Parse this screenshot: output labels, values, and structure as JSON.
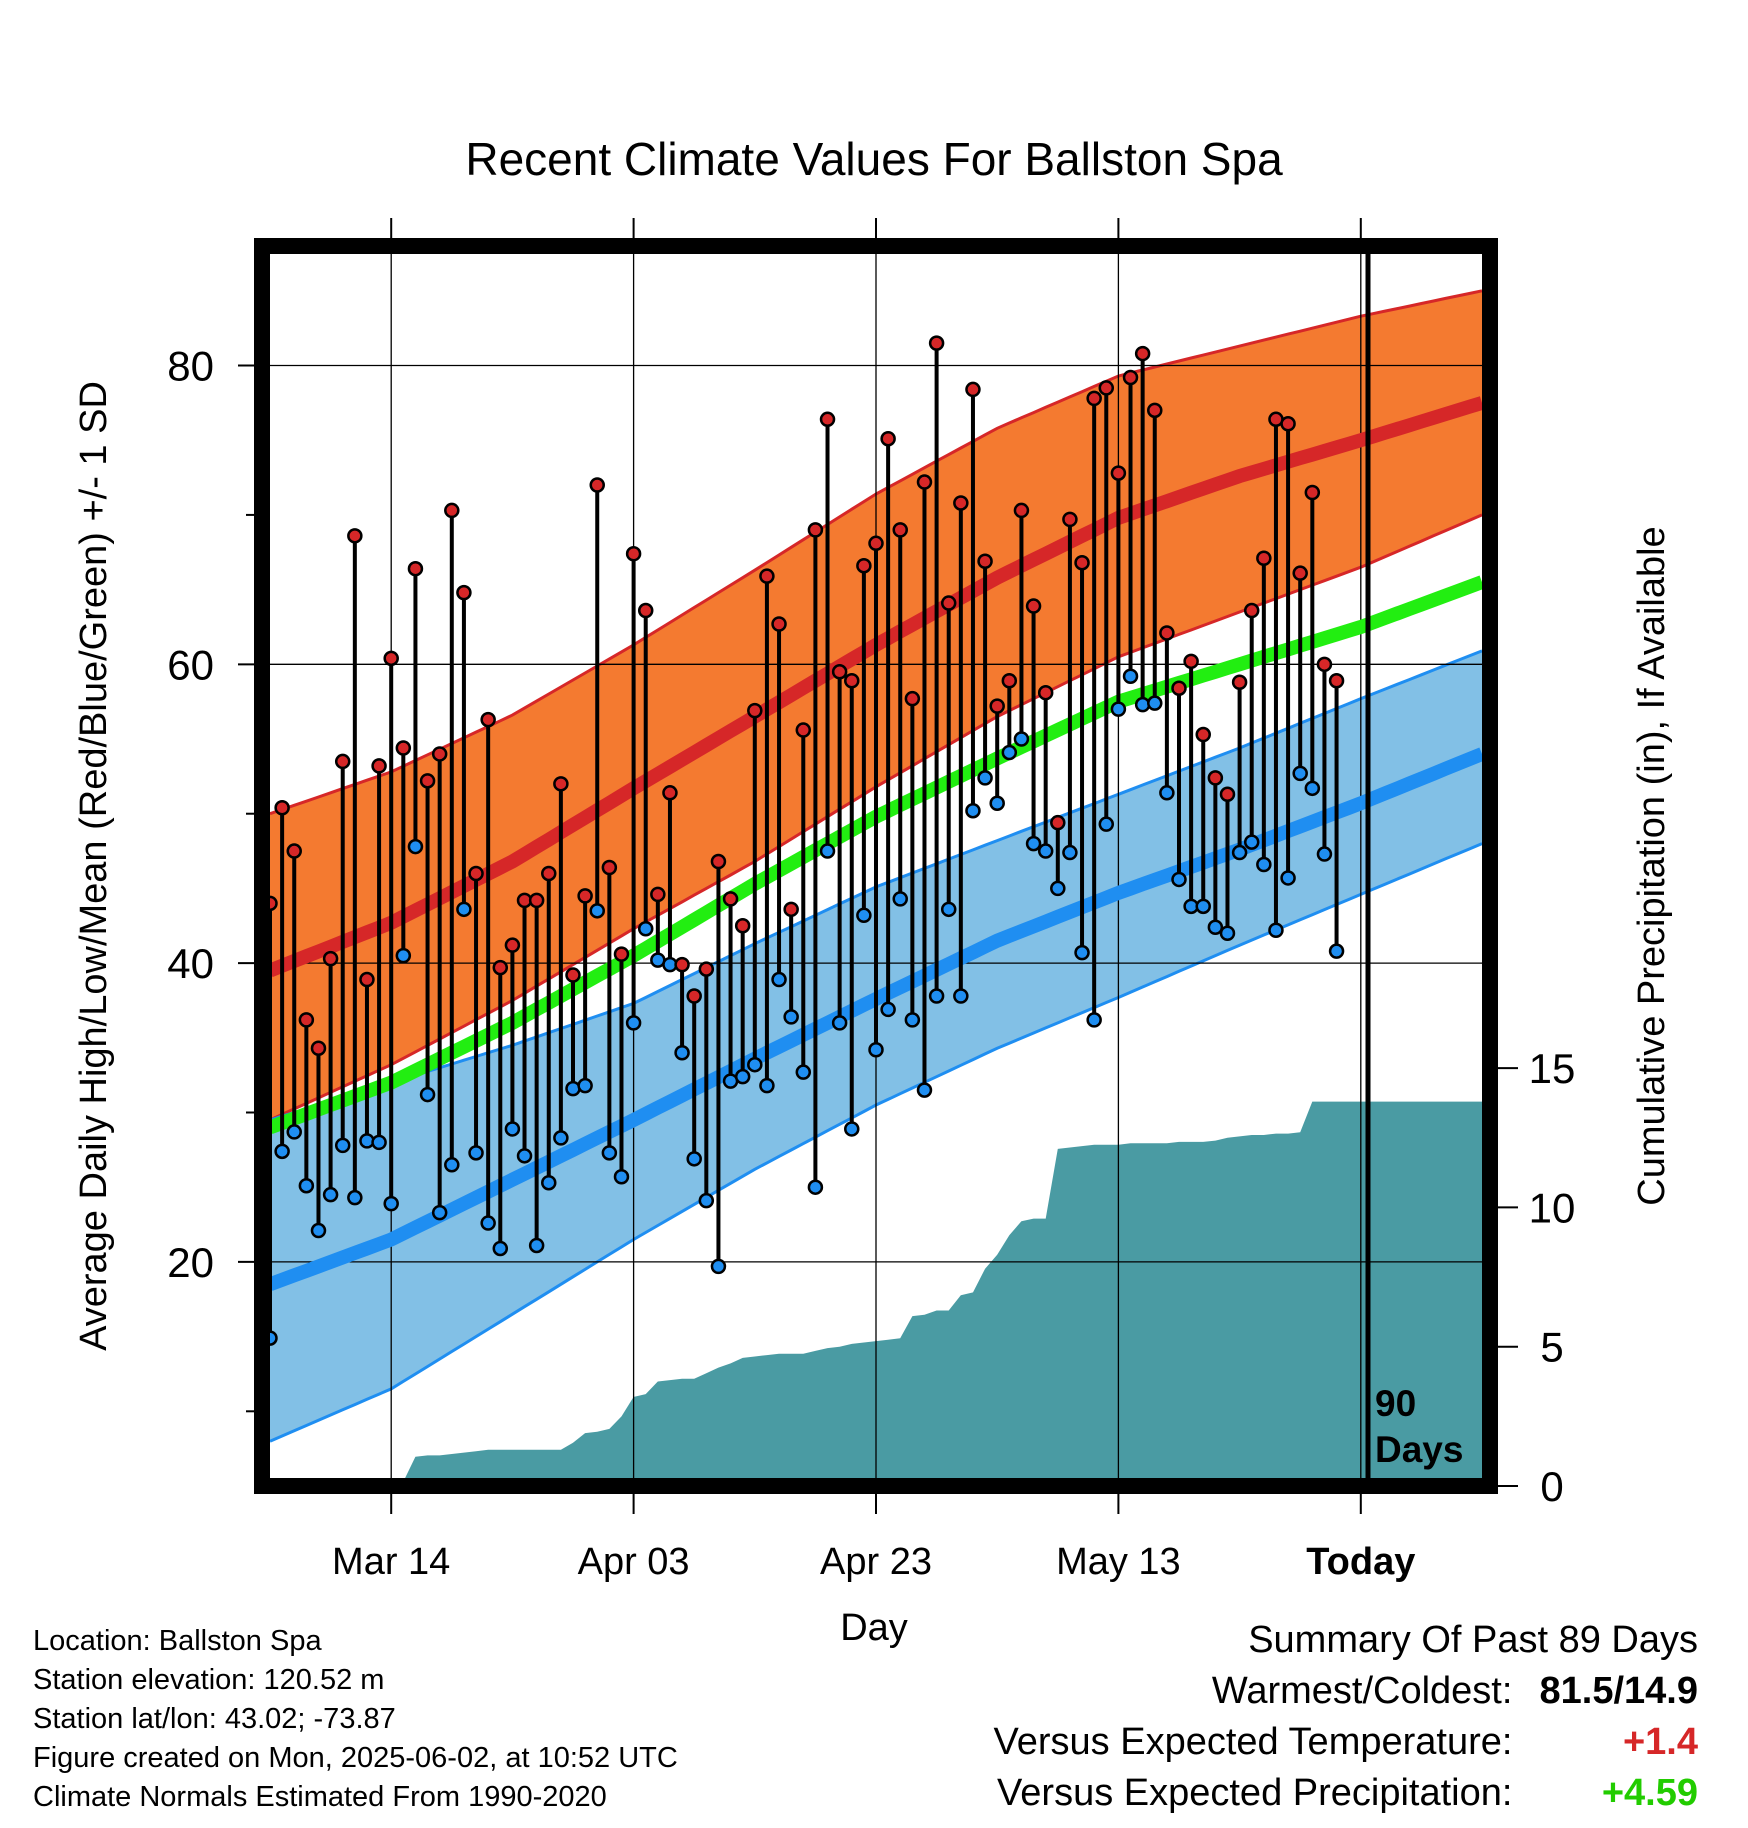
{
  "title": "Recent Climate Values For Ballston Spa",
  "y_left_label": "Average Daily High/Low/Mean (Red/Blue/Green) +/- 1 SD",
  "y_right_label": "Cumulative Precipitation (in), If Available",
  "x_label": "Day",
  "today_annotation": [
    "90",
    "Days"
  ],
  "location_info": [
    "Location: Ballston Spa",
    "Station elevation: 120.52 m",
    "Station lat/lon: 43.02; -73.87",
    "Figure created on Mon, 2025-06-02, at 10:52 UTC",
    "Climate Normals Estimated From 1990-2020"
  ],
  "summary": {
    "heading": "Summary Of Past 89 Days",
    "warmest_coldest_label": "Warmest/Coldest:",
    "warmest_coldest_value": "81.5/14.9",
    "temp_label": "Versus Expected Temperature:",
    "temp_value": "+1.4",
    "precip_label": "Versus Expected Precipitation:",
    "precip_value": "+4.59"
  },
  "colors": {
    "high_band": "#f47a30",
    "high_line": "#d62728",
    "low_band": "#82c0e6",
    "low_line": "#1f8ef1",
    "mean_line": "#22ee11",
    "precip_fill": "#4a9ba3",
    "high_marker": "#d62728",
    "low_marker": "#1f8ef1"
  },
  "chart_data": {
    "type": "line",
    "x_start_day": 0,
    "x_end_day": 100,
    "today_day": 90,
    "x_ticks": [
      {
        "day": 10,
        "label": "Mar 14"
      },
      {
        "day": 30,
        "label": "Apr 03"
      },
      {
        "day": 50,
        "label": "Apr 23"
      },
      {
        "day": 70,
        "label": "May 13"
      },
      {
        "day": 90,
        "label": "Today"
      }
    ],
    "y_left": {
      "min": 5,
      "max": 88,
      "major": [
        20,
        40,
        60,
        80
      ],
      "minor": [
        10,
        30,
        50,
        70
      ]
    },
    "y_right": {
      "min": 0,
      "max": 15,
      "ticks": [
        0,
        5,
        10,
        15
      ]
    },
    "normals": {
      "days": [
        0,
        10,
        20,
        30,
        40,
        50,
        60,
        70,
        80,
        90,
        100
      ],
      "normal_high": [
        39.5,
        42.7,
        46.8,
        51.7,
        56.5,
        61.3,
        65.8,
        69.8,
        72.6,
        75.0,
        77.5
      ],
      "normal_high_upper": [
        50.0,
        52.8,
        56.6,
        61.3,
        66.3,
        71.4,
        75.8,
        79.3,
        81.3,
        83.3,
        85.0
      ],
      "normal_high_lower": [
        29.5,
        33.2,
        37.5,
        42.3,
        46.8,
        51.8,
        56.5,
        60.5,
        63.5,
        66.5,
        70.0
      ],
      "normal_low": [
        18.5,
        21.5,
        25.5,
        29.5,
        33.6,
        37.6,
        41.5,
        44.7,
        47.6,
        50.7,
        54.0
      ],
      "normal_low_upper": [
        29.5,
        32.0,
        34.5,
        37.3,
        41.3,
        45.1,
        48.2,
        51.3,
        54.4,
        57.7,
        60.9
      ],
      "normal_low_lower": [
        8.0,
        11.5,
        16.5,
        21.5,
        26.2,
        30.5,
        34.3,
        37.7,
        41.2,
        44.6,
        48.0
      ],
      "normal_mean": [
        29.0,
        32.0,
        36.0,
        40.5,
        45.3,
        49.8,
        53.7,
        57.5,
        60.0,
        62.5,
        65.5
      ]
    },
    "daily_high": [
      44.0,
      50.4,
      47.5,
      36.2,
      34.3,
      40.3,
      53.5,
      68.6,
      38.9,
      53.2,
      60.4,
      54.4,
      66.4,
      52.2,
      54.0,
      70.3,
      64.8,
      46.0,
      56.3,
      39.7,
      41.2,
      44.2,
      44.2,
      46.0,
      52.0,
      39.2,
      44.5,
      72.0,
      46.4,
      40.6,
      67.4,
      63.6,
      44.6,
      51.4,
      39.9,
      37.8,
      39.6,
      46.8,
      44.3,
      42.5,
      56.9,
      65.9,
      62.7,
      43.6,
      55.6,
      69.0,
      76.4,
      59.5,
      58.9,
      66.6,
      68.1,
      75.1,
      69.0,
      57.7,
      72.2,
      81.5,
      64.1,
      70.8,
      78.4,
      66.9,
      57.2,
      58.9,
      70.3,
      63.9,
      58.1,
      49.4,
      69.7,
      66.8,
      77.8,
      78.5,
      72.8,
      79.2,
      80.8,
      77.0,
      62.1,
      58.4,
      60.2,
      55.3,
      52.4,
      51.3,
      58.8,
      63.6,
      67.1,
      76.4,
      76.1,
      66.1,
      71.5,
      60.0,
      58.9
    ],
    "daily_low": [
      14.9,
      27.4,
      28.7,
      25.1,
      22.1,
      24.5,
      27.8,
      24.3,
      28.1,
      28.0,
      23.9,
      40.5,
      47.8,
      31.2,
      23.3,
      26.5,
      43.6,
      27.3,
      22.6,
      20.9,
      28.9,
      27.1,
      21.1,
      25.3,
      28.3,
      31.6,
      31.8,
      43.5,
      27.3,
      25.7,
      36.0,
      42.3,
      40.2,
      39.9,
      34.0,
      26.9,
      24.1,
      19.7,
      32.1,
      32.4,
      33.2,
      31.8,
      38.9,
      36.4,
      32.7,
      25.0,
      47.5,
      36.0,
      28.9,
      43.2,
      34.2,
      36.9,
      44.3,
      36.2,
      31.5,
      37.8,
      43.6,
      37.8,
      50.2,
      52.4,
      50.7,
      54.1,
      55.0,
      48.0,
      47.5,
      45.0,
      47.4,
      40.7,
      36.2,
      49.3,
      57.0,
      59.2,
      57.3,
      57.4,
      51.4,
      45.6,
      43.8,
      43.8,
      42.4,
      42.0,
      47.4,
      48.1,
      46.6,
      42.2,
      45.7,
      52.7,
      51.7,
      47.3,
      40.8
    ],
    "cumulative_precip": {
      "days": [
        0,
        1,
        2,
        3,
        4,
        5,
        6,
        7,
        8,
        9,
        10,
        11,
        12,
        13,
        14,
        15,
        16,
        17,
        18,
        19,
        20,
        21,
        22,
        23,
        24,
        25,
        26,
        27,
        28,
        29,
        30,
        31,
        32,
        33,
        34,
        35,
        36,
        37,
        38,
        39,
        40,
        41,
        42,
        43,
        44,
        45,
        46,
        47,
        48,
        49,
        50,
        51,
        52,
        53,
        54,
        55,
        56,
        57,
        58,
        59,
        60,
        61,
        62,
        63,
        64,
        65,
        66,
        67,
        68,
        69,
        70,
        71,
        72,
        73,
        74,
        75,
        76,
        77,
        78,
        79,
        80,
        81,
        82,
        83,
        84,
        85,
        86,
        87,
        88,
        89,
        90,
        91,
        92,
        93,
        94,
        95,
        96,
        97,
        98,
        99
      ],
      "values": [
        0.0,
        0.05,
        0.15,
        0.15,
        0.15,
        0.15,
        0.15,
        0.15,
        0.15,
        0.15,
        0.15,
        0.15,
        1.05,
        1.1,
        1.1,
        1.15,
        1.2,
        1.25,
        1.3,
        1.3,
        1.3,
        1.3,
        1.3,
        1.3,
        1.3,
        1.55,
        1.9,
        1.95,
        2.05,
        2.5,
        3.2,
        3.3,
        3.75,
        3.8,
        3.85,
        3.85,
        4.05,
        4.25,
        4.4,
        4.6,
        4.65,
        4.7,
        4.75,
        4.75,
        4.75,
        4.85,
        4.95,
        5.0,
        5.1,
        5.15,
        5.2,
        5.25,
        5.3,
        6.1,
        6.15,
        6.3,
        6.3,
        6.85,
        6.95,
        7.8,
        8.3,
        9.0,
        9.5,
        9.6,
        9.6,
        12.1,
        12.15,
        12.2,
        12.25,
        12.25,
        12.25,
        12.3,
        12.3,
        12.3,
        12.3,
        12.35,
        12.35,
        12.35,
        12.4,
        12.5,
        12.55,
        12.6,
        12.6,
        12.65,
        12.65,
        12.7,
        13.8,
        13.8,
        13.8,
        13.8,
        13.8,
        13.8,
        13.8,
        13.8,
        13.8,
        13.8,
        13.8,
        13.8,
        13.8,
        13.8
      ]
    }
  }
}
